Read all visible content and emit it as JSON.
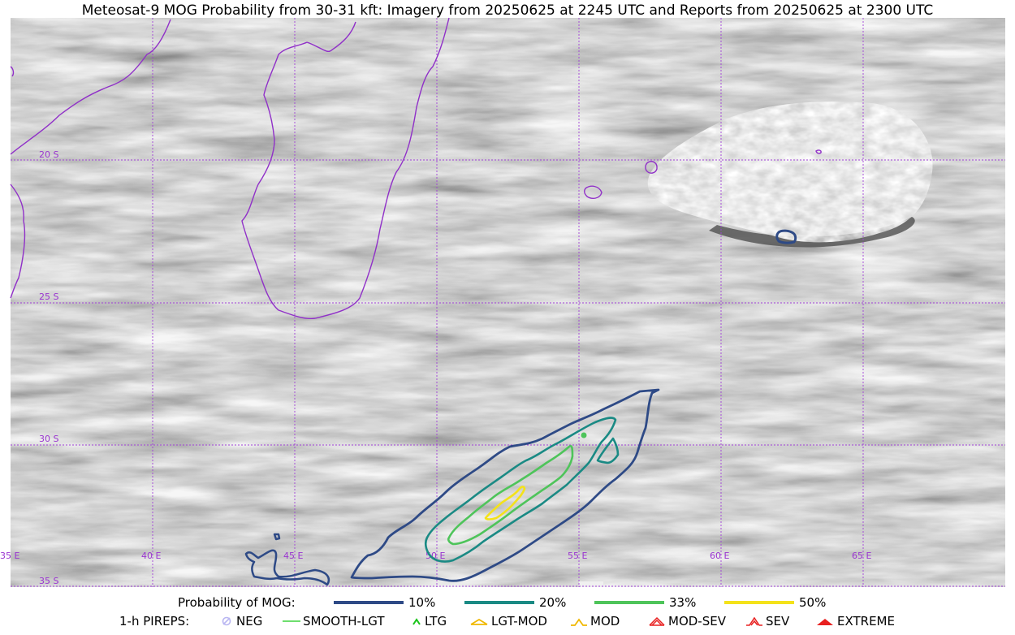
{
  "title": "Meteosat-9 MOG Probability from 30-31 kft: Imagery from 20250625 at 2245 UTC and Reports from 20250625 at 2300 UTC",
  "map": {
    "lat_labels": [
      "20 S",
      "25 S",
      "30 S",
      "35 S"
    ],
    "lon_labels": [
      "35 E",
      "40 E",
      "45 E",
      "50 E",
      "55 E",
      "60 E",
      "65 E"
    ],
    "gridline_color": "#a040d8",
    "coastline_color": "#9030c8",
    "background": "grayscale satellite water vapor imagery"
  },
  "legend": {
    "probability": {
      "label": "Probability of MOG:",
      "items": [
        {
          "label": "10%",
          "color": "#2e4a86"
        },
        {
          "label": "20%",
          "color": "#1a8a84"
        },
        {
          "label": "33%",
          "color": "#4ec45a"
        },
        {
          "label": "50%",
          "color": "#f4e21a"
        }
      ]
    },
    "pireps": {
      "label": "1-h PIREPS:",
      "items": [
        {
          "label": "NEG",
          "icon": "neg-circle-icon",
          "color": "#b9b6f2"
        },
        {
          "label": "SMOOTH-LGT",
          "icon": "smooth-line-icon",
          "color": "#3fd43f"
        },
        {
          "label": "LTG",
          "icon": "ltg-caret-icon",
          "color": "#18c418"
        },
        {
          "label": "LGT-MOD",
          "icon": "lgt-mod-icon",
          "color": "#f0b800"
        },
        {
          "label": "MOD",
          "icon": "mod-icon",
          "color": "#f0b800"
        },
        {
          "label": "MOD-SEV",
          "icon": "mod-sev-icon",
          "color": "#e82020"
        },
        {
          "label": "SEV",
          "icon": "sev-icon",
          "color": "#e82020"
        },
        {
          "label": "EXTREME",
          "icon": "extreme-icon",
          "color": "#e82020"
        }
      ]
    }
  }
}
